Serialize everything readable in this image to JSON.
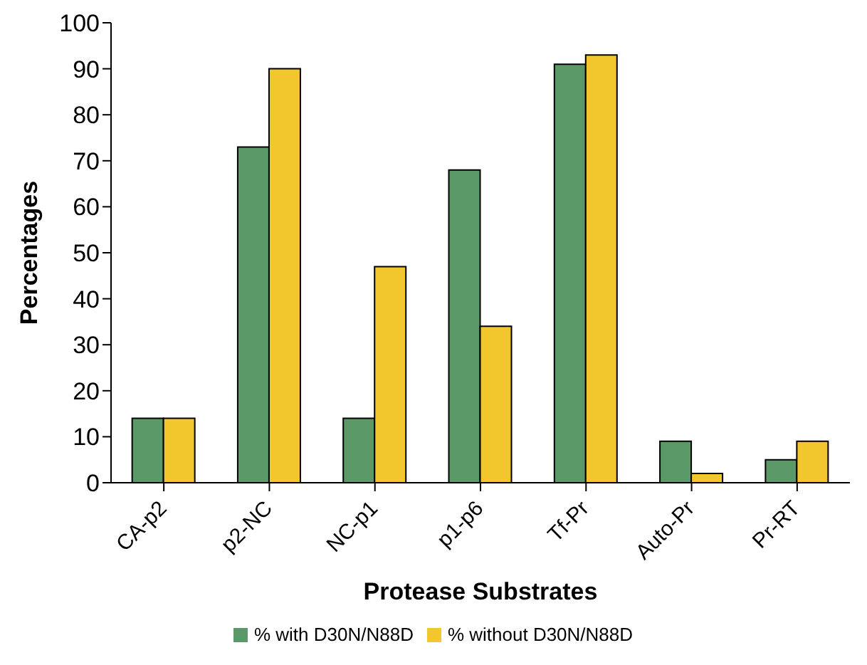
{
  "chart_data": {
    "type": "bar",
    "xlabel": "Protease Substrates",
    "ylabel": "Percentages",
    "categories": [
      "CA-p2",
      "p2-NC",
      "NC-p1",
      "p1-p6",
      "Tf-Pr",
      "Auto-Pr",
      "Pr-RT"
    ],
    "series": [
      {
        "name": "% with D30N/N88D",
        "color": "#5b9a68",
        "values": [
          14,
          73,
          14,
          68,
          91,
          9,
          5
        ]
      },
      {
        "name": "% without D30N/N88D",
        "color": "#f2c72e",
        "values": [
          14,
          90,
          47,
          34,
          93,
          2,
          9
        ]
      }
    ],
    "ylim": [
      0,
      100
    ],
    "yticks": [
      0,
      10,
      20,
      30,
      40,
      50,
      60,
      70,
      80,
      90,
      100
    ],
    "grid": false,
    "legend": "bottom"
  }
}
